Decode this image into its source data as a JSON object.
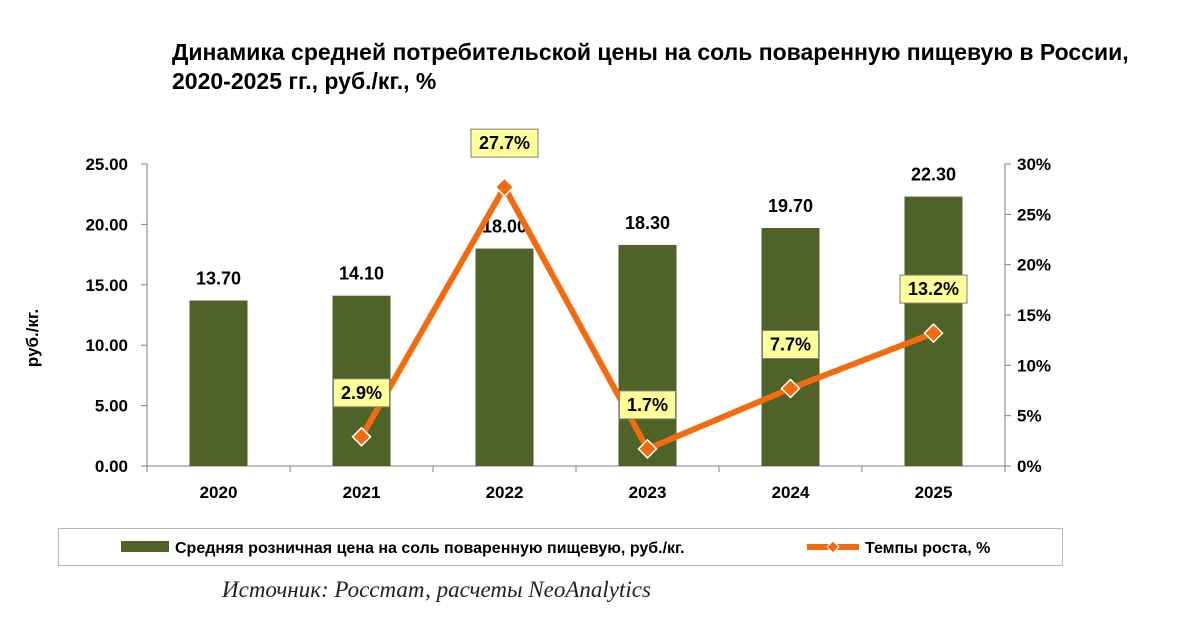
{
  "title": "Динамика средней потребительской цены на соль поваренную пищевую в России, 2020-2025 гг., руб./кг., %",
  "source": "Источник: Росстат, расчеты NeoAnalytics",
  "colors": {
    "bar": "#4f6228",
    "line": "#f26b0f",
    "marker_fill": "#f26b0f",
    "marker_stroke": "#ffffff",
    "label_bg": "#ffff99"
  },
  "chart_data": {
    "type": "bar",
    "categories": [
      "2020",
      "2021",
      "2022",
      "2023",
      "2024",
      "2025"
    ],
    "ylabel": "руб./кг.",
    "ylim": [
      0,
      25
    ],
    "y_ticks": [
      "0.00",
      "5.00",
      "10.00",
      "15.00",
      "20.00",
      "25.00"
    ],
    "y2lim": [
      0,
      30
    ],
    "y2_ticks": [
      "0%",
      "5%",
      "10%",
      "15%",
      "20%",
      "25%",
      "30%"
    ],
    "legend_position": "bottom",
    "series": [
      {
        "name": "Средняя розничная цена на соль поваренную пищевую, руб./кг.",
        "type": "bar",
        "axis": "left",
        "values": [
          13.7,
          14.1,
          18.0,
          18.3,
          19.7,
          22.3
        ],
        "labels": [
          "13.70",
          "14.10",
          "18.00",
          "18.30",
          "19.70",
          "22.30"
        ]
      },
      {
        "name": "Темпы роста, %",
        "type": "line",
        "axis": "right",
        "values": [
          null,
          2.9,
          27.7,
          1.7,
          7.7,
          13.2
        ],
        "labels": [
          "",
          "2.9%",
          "27.7%",
          "1.7%",
          "7.7%",
          "13.2%"
        ]
      }
    ]
  }
}
